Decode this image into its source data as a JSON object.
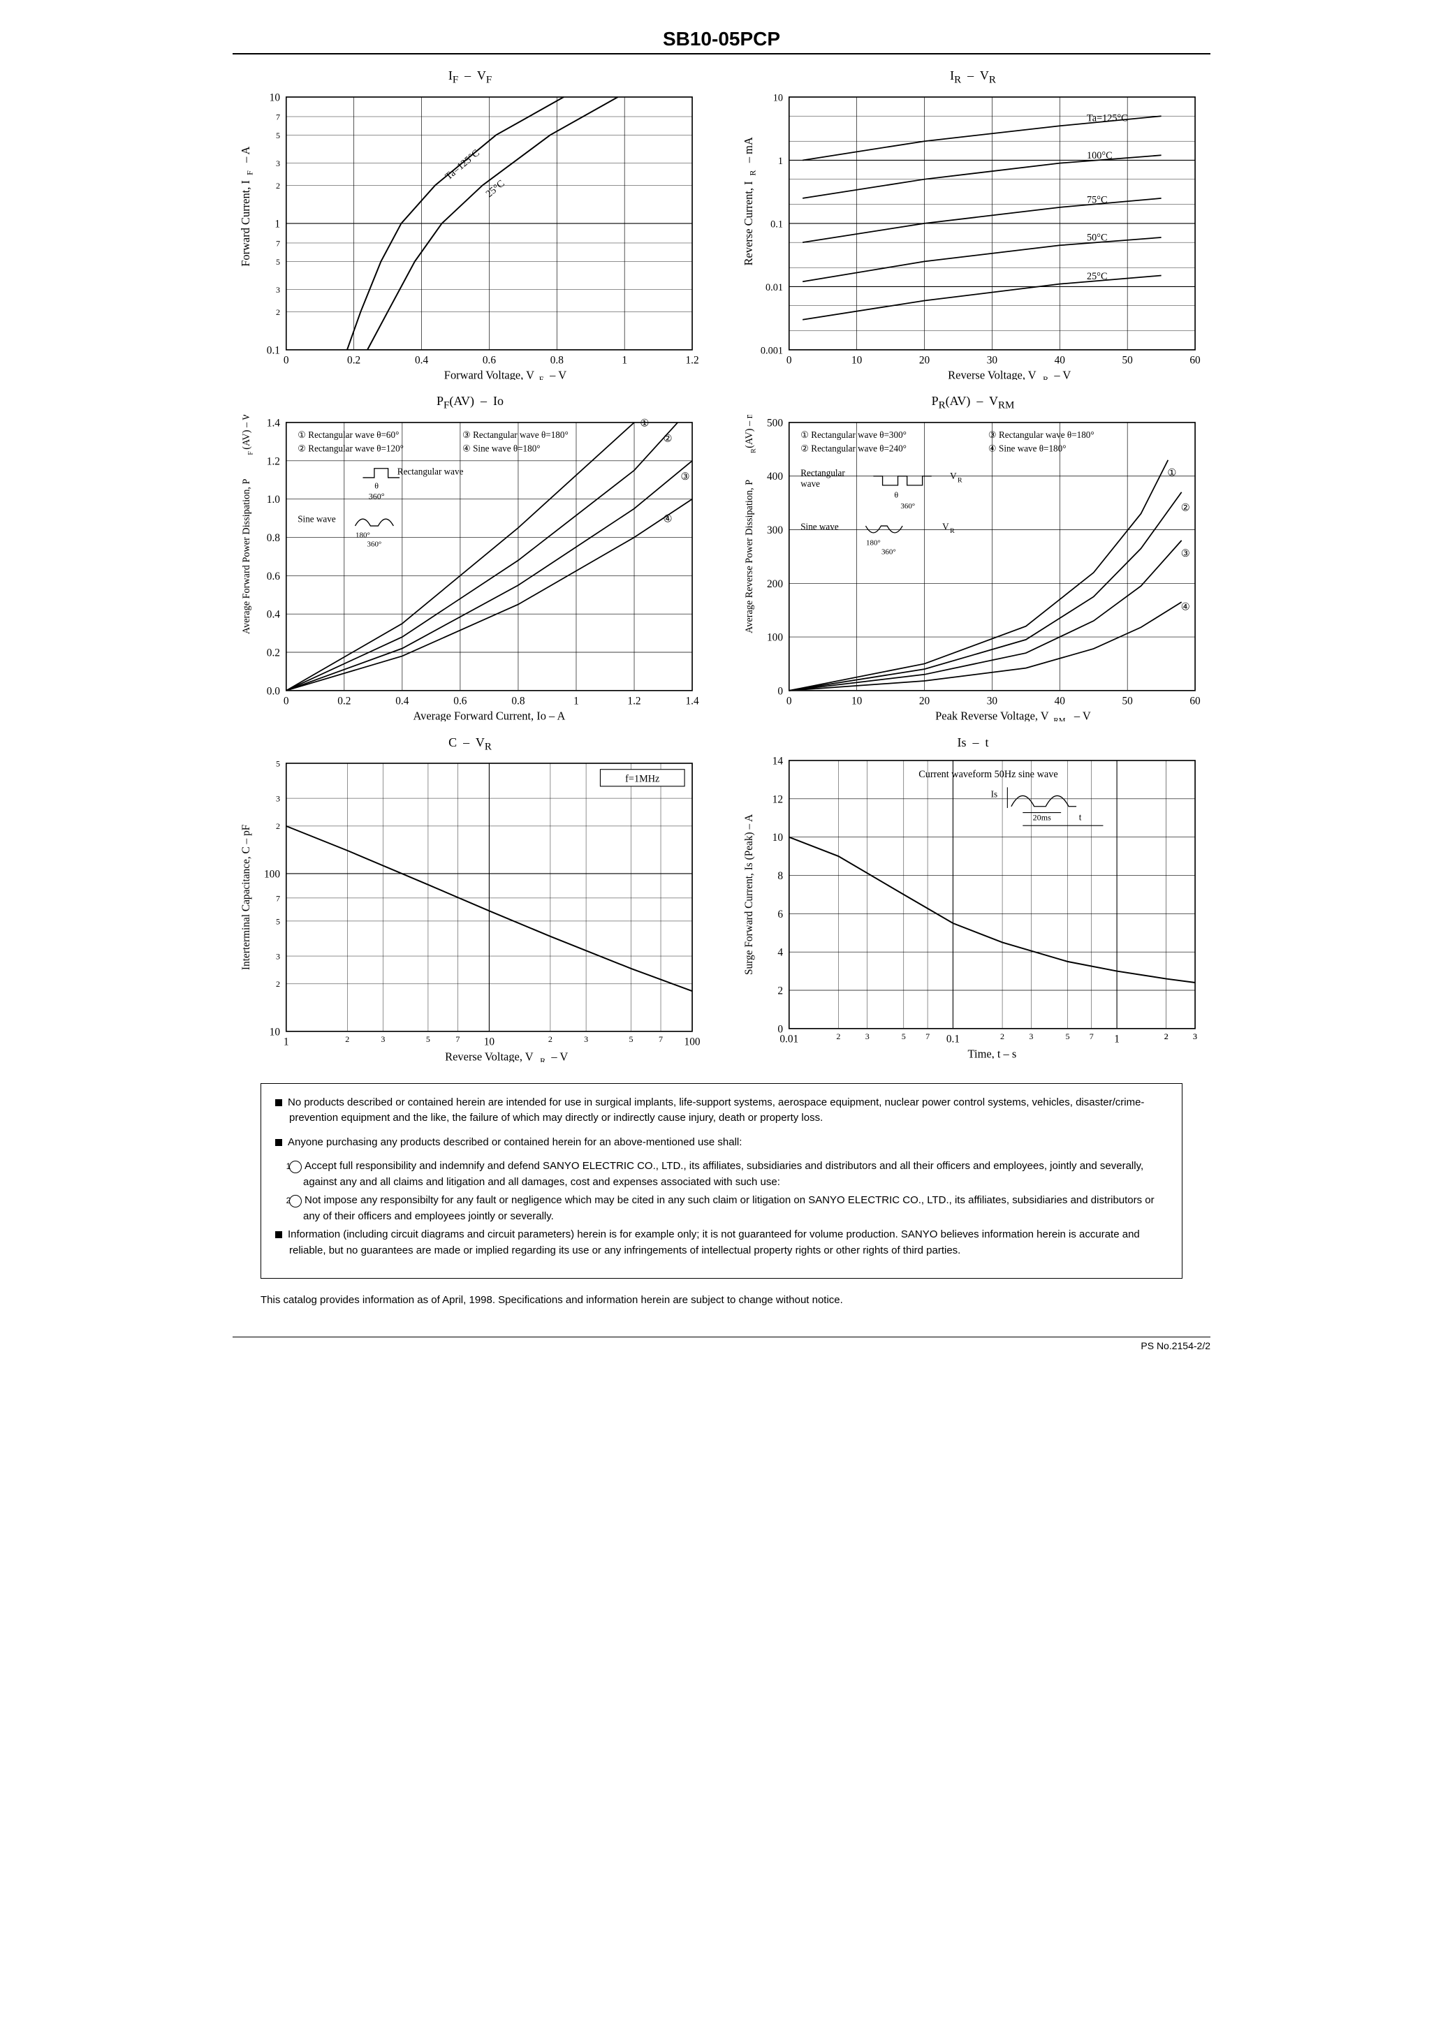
{
  "part_number": "SB10-05PCP",
  "ps_number": "PS No.2154-2/2",
  "charts": {
    "c1": {
      "title_html": "I<sub>F</sub> &nbsp;–&nbsp; V<sub>F</sub>",
      "xlabel": "Forward Voltage, V_F – V",
      "ylabel": "Forward Current, I_F – A",
      "x_min": 0,
      "x_max": 1.2,
      "x_ticks": [
        0,
        0.2,
        0.4,
        0.6,
        0.8,
        1.0,
        1.2
      ],
      "y_type": "log",
      "y_min": 0.1,
      "y_max": 10,
      "y_decades": [
        0.1,
        1.0,
        10
      ],
      "curve_labels": [
        "Ta=125°C",
        "25°C"
      ],
      "curves": [
        {
          "label": "125",
          "pts": [
            [
              0.18,
              0.1
            ],
            [
              0.22,
              0.2
            ],
            [
              0.28,
              0.5
            ],
            [
              0.34,
              1.0
            ],
            [
              0.44,
              2.0
            ],
            [
              0.62,
              5.0
            ],
            [
              0.82,
              10
            ]
          ]
        },
        {
          "label": "25",
          "pts": [
            [
              0.24,
              0.1
            ],
            [
              0.3,
              0.2
            ],
            [
              0.38,
              0.5
            ],
            [
              0.46,
              1.0
            ],
            [
              0.58,
              2.0
            ],
            [
              0.78,
              5.0
            ],
            [
              0.98,
              10
            ]
          ]
        }
      ],
      "stroke": "#000000",
      "bg": "#ffffff",
      "grid": "#000000"
    },
    "c2": {
      "title_html": "I<sub>R</sub> &nbsp;–&nbsp; V<sub>R</sub>",
      "xlabel": "Reverse Voltage, V_R – V",
      "ylabel": "Reverse Current, I_R – mA",
      "x_min": 0,
      "x_max": 60,
      "x_ticks": [
        0,
        10,
        20,
        30,
        40,
        50,
        60
      ],
      "y_type": "log",
      "y_min": 0.001,
      "y_max": 10,
      "y_decades": [
        0.001,
        0.01,
        0.1,
        1.0,
        10
      ],
      "curve_labels": [
        "Ta=125°C",
        "100°C",
        "75°C",
        "50°C",
        "25°C"
      ],
      "curves": [
        {
          "label": "125",
          "pts": [
            [
              2,
              1.0
            ],
            [
              20,
              2.0
            ],
            [
              40,
              3.5
            ],
            [
              55,
              5.0
            ]
          ]
        },
        {
          "label": "100",
          "pts": [
            [
              2,
              0.25
            ],
            [
              20,
              0.5
            ],
            [
              40,
              0.9
            ],
            [
              55,
              1.2
            ]
          ]
        },
        {
          "label": "75",
          "pts": [
            [
              2,
              0.05
            ],
            [
              20,
              0.1
            ],
            [
              40,
              0.18
            ],
            [
              55,
              0.25
            ]
          ]
        },
        {
          "label": "50",
          "pts": [
            [
              2,
              0.012
            ],
            [
              20,
              0.025
            ],
            [
              40,
              0.045
            ],
            [
              55,
              0.06
            ]
          ]
        },
        {
          "label": "25",
          "pts": [
            [
              2,
              0.003
            ],
            [
              20,
              0.006
            ],
            [
              40,
              0.011
            ],
            [
              55,
              0.015
            ]
          ]
        }
      ],
      "stroke": "#000000",
      "bg": "#ffffff",
      "grid": "#000000"
    },
    "c3": {
      "title_html": "P<sub>F</sub>(AV) &nbsp;–&nbsp; Io",
      "xlabel": "Average Forward Current, Io – A",
      "ylabel": "Average Forward Power Dissipation, P_F(AV) – W",
      "x_min": 0,
      "x_max": 1.4,
      "x_ticks": [
        0,
        0.2,
        0.4,
        0.6,
        0.8,
        1.0,
        1.2,
        1.4
      ],
      "y_min": 0,
      "y_max": 1.4,
      "y_ticks": [
        0,
        0.2,
        0.4,
        0.6,
        0.8,
        1.0,
        1.2,
        1.4
      ],
      "legend_items": [
        {
          "num": "①",
          "text": "Rectangular wave θ=60°"
        },
        {
          "num": "②",
          "text": "Rectangular wave θ=120°"
        },
        {
          "num": "③",
          "text": "Rectangular wave θ=180°"
        },
        {
          "num": "④",
          "text": "Sine wave θ=180°"
        }
      ],
      "inset_labels": [
        "Rectangular wave",
        "Sine wave",
        "360°",
        "180°"
      ],
      "curves": [
        {
          "name": "①",
          "pts": [
            [
              0,
              0
            ],
            [
              0.4,
              0.35
            ],
            [
              0.8,
              0.85
            ],
            [
              1.2,
              1.4
            ]
          ]
        },
        {
          "name": "②",
          "pts": [
            [
              0,
              0
            ],
            [
              0.4,
              0.28
            ],
            [
              0.8,
              0.68
            ],
            [
              1.2,
              1.15
            ],
            [
              1.35,
              1.4
            ]
          ]
        },
        {
          "name": "③",
          "pts": [
            [
              0,
              0
            ],
            [
              0.4,
              0.22
            ],
            [
              0.8,
              0.55
            ],
            [
              1.2,
              0.95
            ],
            [
              1.4,
              1.2
            ]
          ]
        },
        {
          "name": "④",
          "pts": [
            [
              0,
              0
            ],
            [
              0.4,
              0.18
            ],
            [
              0.8,
              0.45
            ],
            [
              1.2,
              0.8
            ],
            [
              1.4,
              1.0
            ]
          ]
        }
      ],
      "stroke": "#000000",
      "bg": "#ffffff",
      "grid": "#000000"
    },
    "c4": {
      "title_html": "P<sub>R</sub>(AV) &nbsp;–&nbsp; V<sub>RM</sub>",
      "xlabel": "Peak Reverse Voltage, V_RM – V",
      "ylabel": "Average Reverse Power Dissipation, P_R(AV) – mW",
      "x_min": 0,
      "x_max": 60,
      "x_ticks": [
        0,
        10,
        20,
        30,
        40,
        50,
        60
      ],
      "y_min": 0,
      "y_max": 500,
      "y_ticks": [
        0,
        100,
        200,
        300,
        400,
        500
      ],
      "legend_items": [
        {
          "num": "①",
          "text": "Rectangular wave θ=300°"
        },
        {
          "num": "②",
          "text": "Rectangular wave θ=240°"
        },
        {
          "num": "③",
          "text": "Rectangular wave θ=180°"
        },
        {
          "num": "④",
          "text": "Sine wave θ=180°"
        }
      ],
      "inset_labels": [
        "Rectangular wave",
        "Sine wave",
        "V_R",
        "360°",
        "180°"
      ],
      "curves": [
        {
          "name": "①",
          "pts": [
            [
              0,
              0
            ],
            [
              20,
              50
            ],
            [
              35,
              120
            ],
            [
              45,
              220
            ],
            [
              52,
              330
            ],
            [
              56,
              430
            ]
          ]
        },
        {
          "name": "②",
          "pts": [
            [
              0,
              0
            ],
            [
              20,
              40
            ],
            [
              35,
              95
            ],
            [
              45,
              175
            ],
            [
              52,
              265
            ],
            [
              58,
              370
            ]
          ]
        },
        {
          "name": "③",
          "pts": [
            [
              0,
              0
            ],
            [
              20,
              30
            ],
            [
              35,
              70
            ],
            [
              45,
              130
            ],
            [
              52,
              195
            ],
            [
              58,
              280
            ]
          ]
        },
        {
          "name": "④",
          "pts": [
            [
              0,
              0
            ],
            [
              20,
              18
            ],
            [
              35,
              42
            ],
            [
              45,
              78
            ],
            [
              52,
              118
            ],
            [
              58,
              165
            ]
          ]
        }
      ],
      "stroke": "#000000",
      "bg": "#ffffff",
      "grid": "#000000"
    },
    "c5": {
      "title_html": "C &nbsp;–&nbsp; V<sub>R</sub>",
      "xlabel": "Reverse Voltage, V_R – V",
      "ylabel": "Interterminal Capacitance, C – pF",
      "annotation": "f=1MHz",
      "x_type": "log",
      "x_min": 1,
      "x_max": 100,
      "x_decades": [
        1.0,
        10,
        100
      ],
      "y_type": "log",
      "y_min": 10,
      "y_max": 500,
      "y_decades": [
        10,
        100
      ],
      "y_top_ticks": [
        200,
        300,
        500
      ],
      "curves": [
        {
          "pts": [
            [
              1,
              200
            ],
            [
              2,
              140
            ],
            [
              5,
              85
            ],
            [
              10,
              58
            ],
            [
              20,
              40
            ],
            [
              50,
              25
            ],
            [
              100,
              18
            ]
          ]
        }
      ],
      "stroke": "#000000",
      "bg": "#ffffff",
      "grid": "#000000"
    },
    "c6": {
      "title_html": "Is &nbsp;–&nbsp; t",
      "xlabel": "Time, t – s",
      "ylabel": "Surge Forward Current, Is (Peak) – A",
      "annotation": "Current waveform 50Hz sine wave",
      "inset_labels": [
        "Is",
        "20ms",
        "t"
      ],
      "x_type": "log",
      "x_min": 0.01,
      "x_max": 3,
      "x_decades": [
        0.01,
        0.1,
        1.0
      ],
      "y_min": 0,
      "y_max": 14,
      "y_ticks": [
        0,
        2,
        4,
        6,
        8,
        10,
        12,
        14
      ],
      "curves": [
        {
          "pts": [
            [
              0.01,
              10
            ],
            [
              0.02,
              9
            ],
            [
              0.05,
              7
            ],
            [
              0.1,
              5.5
            ],
            [
              0.2,
              4.5
            ],
            [
              0.5,
              3.5
            ],
            [
              1.0,
              3.0
            ],
            [
              2.0,
              2.6
            ],
            [
              3.0,
              2.4
            ]
          ]
        }
      ],
      "stroke": "#000000",
      "bg": "#ffffff",
      "grid": "#000000"
    }
  },
  "notices": {
    "n1": "No products described or contained herein are intended for use in surgical implants, life-support systems, aerospace equipment, nuclear power control systems, vehicles, disaster/crime-prevention equipment and the like, the failure of which may directly or indirectly cause injury, death or property loss.",
    "n2_intro": "Anyone purchasing any products described or contained herein for an above-mentioned use shall:",
    "n2_1": "Accept full responsibility and indemnify and defend SANYO ELECTRIC CO., LTD., its affiliates, subsidiaries and distributors and all their officers and employees, jointly and severally, against any and all claims and litigation and all damages, cost and expenses associated with such use:",
    "n2_2": "Not impose any responsibilty for any fault or negligence which may be cited in any such claim or litigation on SANYO ELECTRIC CO., LTD., its affiliates, subsidiaries and distributors or any of their officers and employees jointly or severally.",
    "n3": "Information (including circuit diagrams and circuit parameters) herein is for example only; it is not guaranteed for volume production. SANYO believes information herein is accurate and reliable, but no guarantees are made or implied regarding its use or any infringements of intellectual property rights or other rights of third parties."
  },
  "foot": "This catalog provides information as of April, 1998. Specifications and information herein are subject to change without notice."
}
